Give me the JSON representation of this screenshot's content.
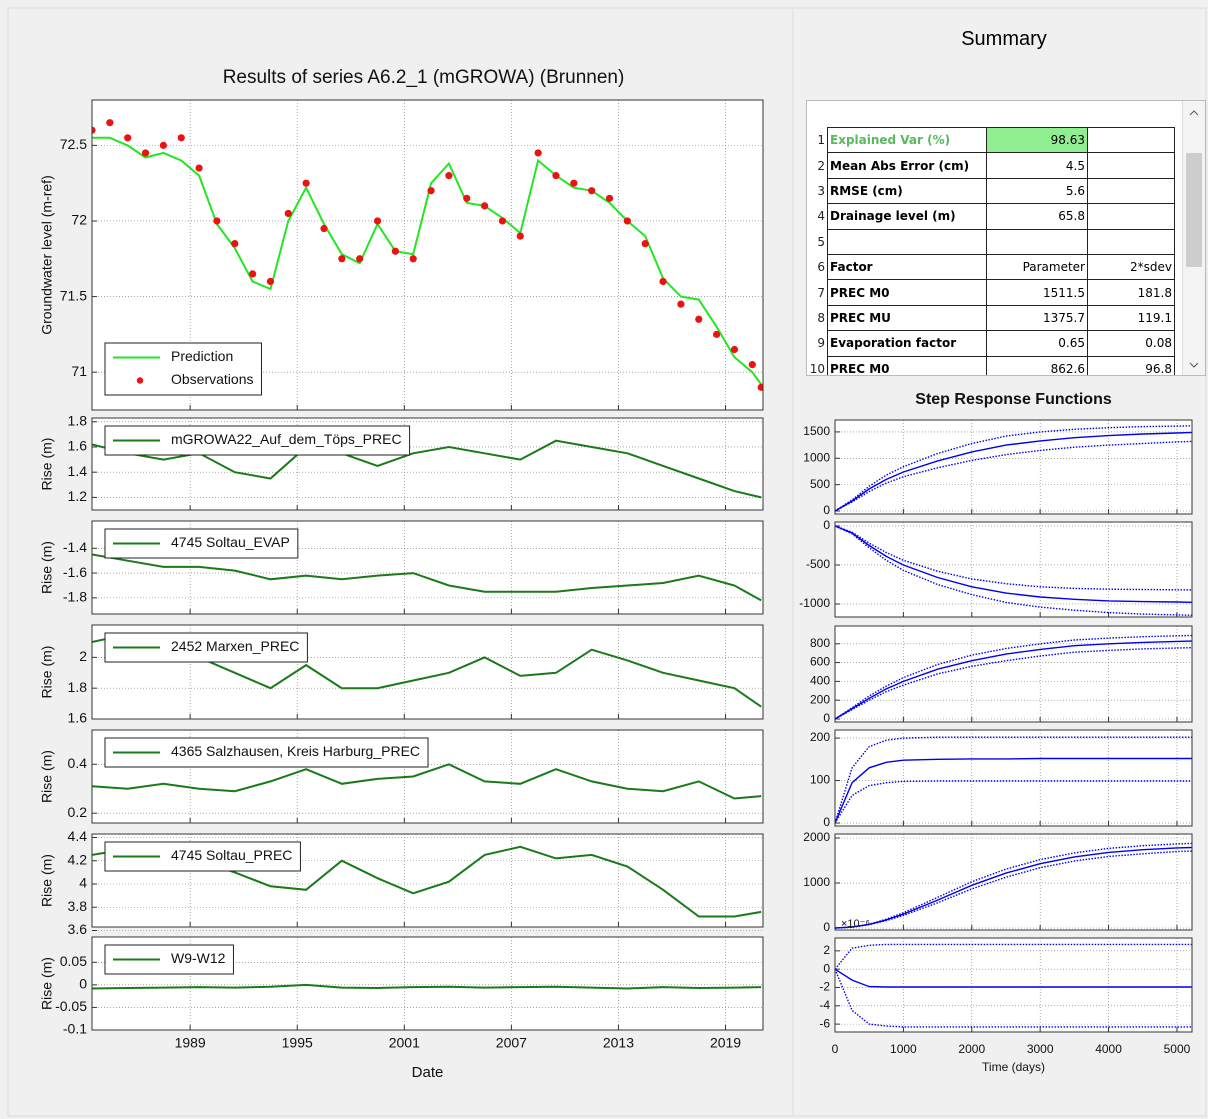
{
  "summary": {
    "title": "Summary",
    "table": {
      "row_numbers": [
        1,
        2,
        3,
        4,
        5,
        6,
        7,
        8,
        9,
        10
      ],
      "rows": [
        [
          "Explained Var (%)",
          98.63,
          null
        ],
        [
          "Mean Abs Error (cm)",
          4.5,
          null
        ],
        [
          "RMSE (cm)",
          5.6,
          null
        ],
        [
          "Drainage level (m)",
          65.8,
          null
        ],
        [
          null,
          null,
          null
        ],
        [
          "Factor",
          "Parameter",
          "2*sdev"
        ],
        [
          "PREC M0",
          1511.5,
          181.8
        ],
        [
          "PREC MU",
          1375.7,
          119.1
        ],
        [
          "Evaporation factor",
          0.65,
          0.08
        ],
        [
          "PREC M0",
          862.6,
          96.8
        ]
      ]
    }
  },
  "chart_data": [
    {
      "type": "line",
      "title": "Results of series A6.2_1 (mGROWA) (Brunnen)",
      "y_label": "Groundwater level (m-ref)",
      "legend": "lower left",
      "grid": true,
      "x": [
        1983.5,
        1984.5,
        1985.5,
        1986.5,
        1987.5,
        1988.5,
        1989.5,
        1990.5,
        1991.5,
        1992.5,
        1993.5,
        1994.5,
        1995.5,
        1996.5,
        1997.5,
        1998.5,
        1999.5,
        2000.5,
        2001.5,
        2002.5,
        2003.5,
        2004.5,
        2005.5,
        2006.5,
        2007.5,
        2008.5,
        2009.5,
        2010.5,
        2011.5,
        2012.5,
        2013.5,
        2014.5,
        2015.5,
        2016.5,
        2017.5,
        2018.5,
        2019.5,
        2020.5,
        2021
      ],
      "ylim": [
        70.75,
        72.8
      ],
      "yticks": [
        71,
        71.5,
        72,
        72.5
      ],
      "series": [
        {
          "name": "Prediction",
          "color": "#22e622",
          "style": "solid",
          "values": [
            72.55,
            72.55,
            72.5,
            72.42,
            72.45,
            72.4,
            72.3,
            71.98,
            71.82,
            71.6,
            71.55,
            72.0,
            72.22,
            71.98,
            71.78,
            71.72,
            71.98,
            71.8,
            71.78,
            72.25,
            72.38,
            72.12,
            72.1,
            72.02,
            71.92,
            72.4,
            72.3,
            72.22,
            72.2,
            72.12,
            72.0,
            71.9,
            71.62,
            71.5,
            71.48,
            71.3,
            71.1,
            71.0,
            70.92
          ]
        },
        {
          "name": "Observations",
          "color": "#ee1111",
          "style": "markers",
          "values": [
            72.6,
            72.65,
            72.55,
            72.45,
            72.5,
            72.55,
            72.35,
            72.0,
            71.85,
            71.65,
            71.6,
            72.05,
            72.25,
            71.95,
            71.75,
            71.75,
            72.0,
            71.8,
            71.75,
            72.2,
            72.3,
            72.15,
            72.1,
            72.0,
            71.9,
            72.45,
            72.3,
            72.25,
            72.2,
            72.15,
            72.0,
            71.85,
            71.6,
            71.45,
            71.35,
            71.25,
            71.15,
            71.05,
            70.9
          ]
        }
      ]
    },
    {
      "type": "line",
      "y_label": "Rise (m)",
      "legend": "upper left",
      "grid": true,
      "x": [
        1983.5,
        1985.5,
        1987.5,
        1989.5,
        1991.5,
        1993.5,
        1995.5,
        1997.5,
        1999.5,
        2001.5,
        2003.5,
        2005.5,
        2007.5,
        2009.5,
        2011.5,
        2013.5,
        2015.5,
        2017.5,
        2019.5,
        2021
      ],
      "ylim": [
        1.1,
        1.83
      ],
      "yticks": [
        1.2,
        1.4,
        1.6,
        1.8
      ],
      "series": [
        {
          "name": "mGROWA22_Auf_dem_Töps_PREC",
          "color": "#1a7a1a",
          "style": "solid",
          "values": [
            1.62,
            1.55,
            1.5,
            1.55,
            1.4,
            1.35,
            1.6,
            1.55,
            1.45,
            1.55,
            1.6,
            1.55,
            1.5,
            1.65,
            1.6,
            1.55,
            1.45,
            1.35,
            1.25,
            1.2
          ]
        }
      ]
    },
    {
      "type": "line",
      "y_label": "Rise (m)",
      "legend": "upper left",
      "grid": true,
      "x": [
        1983.5,
        1985.5,
        1987.5,
        1989.5,
        1991.5,
        1993.5,
        1995.5,
        1997.5,
        1999.5,
        2001.5,
        2003.5,
        2005.5,
        2007.5,
        2009.5,
        2011.5,
        2013.5,
        2015.5,
        2017.5,
        2019.5,
        2021
      ],
      "ylim": [
        -1.93,
        -1.18
      ],
      "yticks": [
        -1.8,
        -1.6,
        -1.4
      ],
      "series": [
        {
          "name": "4745 Soltau_EVAP",
          "color": "#1a7a1a",
          "style": "solid",
          "values": [
            -1.45,
            -1.5,
            -1.55,
            -1.55,
            -1.58,
            -1.65,
            -1.62,
            -1.65,
            -1.62,
            -1.6,
            -1.7,
            -1.75,
            -1.75,
            -1.75,
            -1.72,
            -1.7,
            -1.68,
            -1.62,
            -1.7,
            -1.82
          ]
        }
      ]
    },
    {
      "type": "line",
      "y_label": "Rise (m)",
      "legend": "upper left",
      "grid": true,
      "x": [
        1983.5,
        1985.5,
        1987.5,
        1989.5,
        1991.5,
        1993.5,
        1995.5,
        1997.5,
        1999.5,
        2001.5,
        2003.5,
        2005.5,
        2007.5,
        2009.5,
        2011.5,
        2013.5,
        2015.5,
        2017.5,
        2019.5,
        2021
      ],
      "ylim": [
        1.6,
        2.21
      ],
      "yticks": [
        1.6,
        1.8,
        2
      ],
      "series": [
        {
          "name": "2452 Marxen_PREC",
          "color": "#1a7a1a",
          "style": "solid",
          "values": [
            2.1,
            2.15,
            2.05,
            2.0,
            1.9,
            1.8,
            1.95,
            1.8,
            1.8,
            1.85,
            1.9,
            2.0,
            1.88,
            1.9,
            2.05,
            1.98,
            1.9,
            1.85,
            1.8,
            1.68
          ]
        }
      ]
    },
    {
      "type": "line",
      "y_label": "Rise (m)",
      "legend": "upper left",
      "grid": true,
      "x": [
        1983.5,
        1985.5,
        1987.5,
        1989.5,
        1991.5,
        1993.5,
        1995.5,
        1997.5,
        1999.5,
        2001.5,
        2003.5,
        2005.5,
        2007.5,
        2009.5,
        2011.5,
        2013.5,
        2015.5,
        2017.5,
        2019.5,
        2021
      ],
      "ylim": [
        0.16,
        0.54
      ],
      "yticks": [
        0.2,
        0.4
      ],
      "series": [
        {
          "name": "4365 Salzhausen, Kreis Harburg_PREC",
          "color": "#1a7a1a",
          "style": "solid",
          "values": [
            0.31,
            0.3,
            0.32,
            0.3,
            0.29,
            0.33,
            0.38,
            0.32,
            0.34,
            0.35,
            0.4,
            0.33,
            0.32,
            0.38,
            0.33,
            0.3,
            0.29,
            0.33,
            0.26,
            0.27
          ]
        }
      ]
    },
    {
      "type": "line",
      "y_label": "Rise (m)",
      "legend": "upper left",
      "grid": true,
      "x": [
        1983.5,
        1985.5,
        1987.5,
        1989.5,
        1991.5,
        1993.5,
        1995.5,
        1997.5,
        1999.5,
        2001.5,
        2003.5,
        2005.5,
        2007.5,
        2009.5,
        2011.5,
        2013.5,
        2015.5,
        2017.5,
        2019.5,
        2021
      ],
      "ylim": [
        3.63,
        4.43
      ],
      "yticks": [
        3.6,
        3.8,
        4,
        4.2,
        4.4
      ],
      "series": [
        {
          "name": "4745 Soltau_PREC",
          "color": "#1a7a1a",
          "style": "solid",
          "values": [
            4.25,
            4.3,
            4.25,
            4.2,
            4.1,
            3.98,
            3.95,
            4.2,
            4.05,
            3.92,
            4.02,
            4.25,
            4.32,
            4.22,
            4.25,
            4.15,
            3.95,
            3.72,
            3.72,
            3.76
          ]
        }
      ]
    },
    {
      "type": "line",
      "y_label": "Rise (m)",
      "x_label": "Date",
      "legend": "upper left",
      "grid": true,
      "x": [
        1983.5,
        1985.5,
        1987.5,
        1989.5,
        1991.5,
        1993.5,
        1995.5,
        1997.5,
        1999.5,
        2001.5,
        2003.5,
        2005.5,
        2007.5,
        2009.5,
        2011.5,
        2013.5,
        2015.5,
        2017.5,
        2019.5,
        2021
      ],
      "xlim": [
        1983.5,
        2021.1
      ],
      "xticks": [
        1989,
        1995,
        2001,
        2007,
        2013,
        2019
      ],
      "ylim": [
        -0.1,
        0.106
      ],
      "yticks": [
        -0.1,
        -0.05,
        0,
        0.05
      ],
      "series": [
        {
          "name": "W9-W12",
          "color": "#1a7a1a",
          "style": "solid",
          "values": [
            -0.008,
            -0.007,
            -0.006,
            -0.005,
            -0.006,
            -0.004,
            0.0,
            -0.006,
            -0.007,
            -0.005,
            -0.004,
            -0.006,
            -0.005,
            -0.004,
            -0.006,
            -0.008,
            -0.005,
            -0.007,
            -0.006,
            -0.005
          ]
        }
      ]
    },
    {
      "type": "line",
      "title": "Step Response Functions",
      "grid": true,
      "x": [
        0,
        250,
        500,
        750,
        1000,
        1500,
        2000,
        2500,
        3000,
        3500,
        4000,
        4500,
        5000,
        5220
      ],
      "ylim": [
        -57,
        1726
      ],
      "yticks": [
        0,
        500,
        1000,
        1500
      ],
      "series": [
        {
          "color": "#0000ee",
          "style": "solid",
          "values": [
            0,
            190,
            420,
            600,
            740,
            950,
            1120,
            1250,
            1330,
            1390,
            1430,
            1460,
            1480,
            1490
          ]
        },
        {
          "color": "#0000ee",
          "style": "dotted",
          "values": [
            0,
            210,
            470,
            680,
            840,
            1090,
            1280,
            1420,
            1500,
            1550,
            1580,
            1600,
            1610,
            1615
          ]
        },
        {
          "color": "#0000ee",
          "style": "dotted",
          "values": [
            0,
            170,
            370,
            530,
            650,
            820,
            960,
            1070,
            1150,
            1210,
            1250,
            1280,
            1310,
            1320
          ]
        }
      ]
    },
    {
      "type": "line",
      "grid": true,
      "x": [
        0,
        250,
        500,
        750,
        1000,
        1500,
        2000,
        2500,
        3000,
        3500,
        4000,
        4500,
        5000,
        5220
      ],
      "ylim": [
        -1167,
        51
      ],
      "yticks": [
        -1000,
        -500,
        0
      ],
      "series": [
        {
          "color": "#0000ee",
          "style": "solid",
          "values": [
            0,
            -90,
            -250,
            -390,
            -500,
            -660,
            -780,
            -860,
            -910,
            -940,
            -960,
            -970,
            -975,
            -978
          ]
        },
        {
          "color": "#0000ee",
          "style": "dotted",
          "values": [
            0,
            -80,
            -220,
            -340,
            -440,
            -580,
            -680,
            -740,
            -780,
            -800,
            -810,
            -815,
            -818,
            -820
          ]
        },
        {
          "color": "#0000ee",
          "style": "dotted",
          "values": [
            0,
            -100,
            -280,
            -440,
            -570,
            -750,
            -880,
            -980,
            -1040,
            -1080,
            -1110,
            -1130,
            -1140,
            -1145
          ]
        }
      ]
    },
    {
      "type": "line",
      "grid": true,
      "x": [
        0,
        250,
        500,
        750,
        1000,
        1500,
        2000,
        2500,
        3000,
        3500,
        4000,
        4500,
        5000,
        5220
      ],
      "ylim": [
        -32,
        989
      ],
      "yticks": [
        0,
        200,
        400,
        600,
        800
      ],
      "series": [
        {
          "color": "#0000ee",
          "style": "solid",
          "values": [
            0,
            110,
            220,
            320,
            400,
            530,
            620,
            690,
            740,
            780,
            800,
            815,
            825,
            828
          ]
        },
        {
          "color": "#0000ee",
          "style": "dotted",
          "values": [
            0,
            120,
            245,
            350,
            440,
            580,
            680,
            750,
            800,
            840,
            860,
            875,
            885,
            888
          ]
        },
        {
          "color": "#0000ee",
          "style": "dotted",
          "values": [
            0,
            100,
            200,
            290,
            360,
            480,
            560,
            620,
            670,
            710,
            730,
            745,
            755,
            758
          ]
        }
      ]
    },
    {
      "type": "line",
      "grid": true,
      "x": [
        0,
        250,
        500,
        750,
        1000,
        1500,
        2000,
        2500,
        3000,
        3500,
        4000,
        4500,
        5000,
        5220
      ],
      "ylim": [
        -7,
        219
      ],
      "yticks": [
        0,
        100,
        200
      ],
      "series": [
        {
          "color": "#0000ee",
          "style": "solid",
          "values": [
            0,
            95,
            130,
            143,
            148,
            150,
            151,
            151,
            152,
            152,
            152,
            152,
            152,
            152
          ]
        },
        {
          "color": "#0000ee",
          "style": "dotted",
          "values": [
            0,
            130,
            180,
            195,
            200,
            202,
            202,
            202,
            202,
            202,
            202,
            202,
            202,
            202
          ]
        },
        {
          "color": "#0000ee",
          "style": "dotted",
          "values": [
            0,
            65,
            88,
            95,
            98,
            99,
            99,
            99,
            99,
            99,
            99,
            99,
            99,
            99
          ]
        }
      ]
    },
    {
      "type": "line",
      "grid": true,
      "annotation": "×10⁻⁶",
      "x": [
        0,
        250,
        500,
        750,
        1000,
        1500,
        2000,
        2500,
        3000,
        3500,
        4000,
        4500,
        5000,
        5220
      ],
      "ylim": [
        -44,
        2089
      ],
      "yticks": [
        0,
        1000,
        2000
      ],
      "series": [
        {
          "color": "#0000ee",
          "style": "solid",
          "values": [
            0,
            20,
            80,
            180,
            310,
            620,
            950,
            1220,
            1430,
            1580,
            1680,
            1740,
            1780,
            1790
          ]
        },
        {
          "color": "#0000ee",
          "style": "dotted",
          "values": [
            0,
            22,
            85,
            195,
            340,
            680,
            1030,
            1310,
            1520,
            1670,
            1770,
            1830,
            1870,
            1880
          ]
        },
        {
          "color": "#0000ee",
          "style": "dotted",
          "values": [
            0,
            18,
            75,
            165,
            280,
            560,
            870,
            1130,
            1340,
            1490,
            1590,
            1650,
            1700,
            1710
          ]
        }
      ]
    },
    {
      "type": "line",
      "x_label": "Time (days)",
      "grid": true,
      "x": [
        0,
        250,
        500,
        750,
        1000,
        1500,
        2000,
        2500,
        3000,
        3500,
        4000,
        4500,
        5000,
        5220
      ],
      "xlim": [
        0,
        5220
      ],
      "xticks": [
        0,
        1000,
        2000,
        3000,
        4000,
        5000
      ],
      "ylim": [
        -6.86,
        3.4
      ],
      "yticks": [
        -6,
        -4,
        -2,
        0,
        2
      ],
      "series": [
        {
          "color": "#0000ee",
          "style": "solid",
          "values": [
            0,
            -1.2,
            -1.9,
            -1.95,
            -1.95,
            -1.95,
            -1.95,
            -1.95,
            -1.95,
            -1.95,
            -1.95,
            -1.95,
            -1.95,
            -1.95
          ]
        },
        {
          "color": "#0000ee",
          "style": "dotted",
          "values": [
            0,
            2.3,
            2.6,
            2.7,
            2.7,
            2.7,
            2.7,
            2.7,
            2.7,
            2.7,
            2.7,
            2.7,
            2.7,
            2.7
          ]
        },
        {
          "color": "#0000ee",
          "style": "dotted",
          "values": [
            0,
            -4.5,
            -6.0,
            -6.2,
            -6.3,
            -6.3,
            -6.3,
            -6.3,
            -6.3,
            -6.3,
            -6.3,
            -6.3,
            -6.3,
            -6.3
          ]
        }
      ]
    }
  ]
}
